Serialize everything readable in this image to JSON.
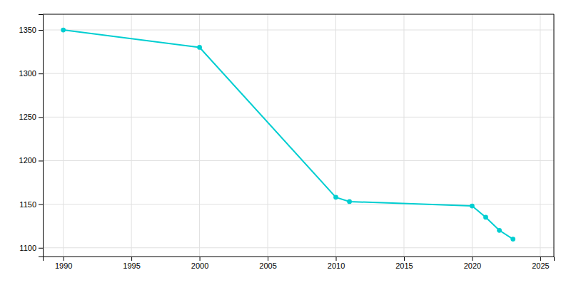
{
  "chart_data": {
    "type": "line",
    "x": [
      1990,
      2000,
      2010,
      2011,
      2020,
      2021,
      2022,
      2023
    ],
    "values": [
      1350,
      1330,
      1158,
      1153,
      1148,
      1135,
      1120,
      1110
    ],
    "color": "#00CED1",
    "marker": "circle",
    "xlim": [
      1988.5,
      2026
    ],
    "ylim": [
      1090,
      1368
    ],
    "xticks": [
      1990,
      1995,
      2000,
      2005,
      2010,
      2015,
      2020,
      2025
    ],
    "yticks": [
      1100,
      1150,
      1200,
      1250,
      1300,
      1350
    ],
    "grid": true
  }
}
